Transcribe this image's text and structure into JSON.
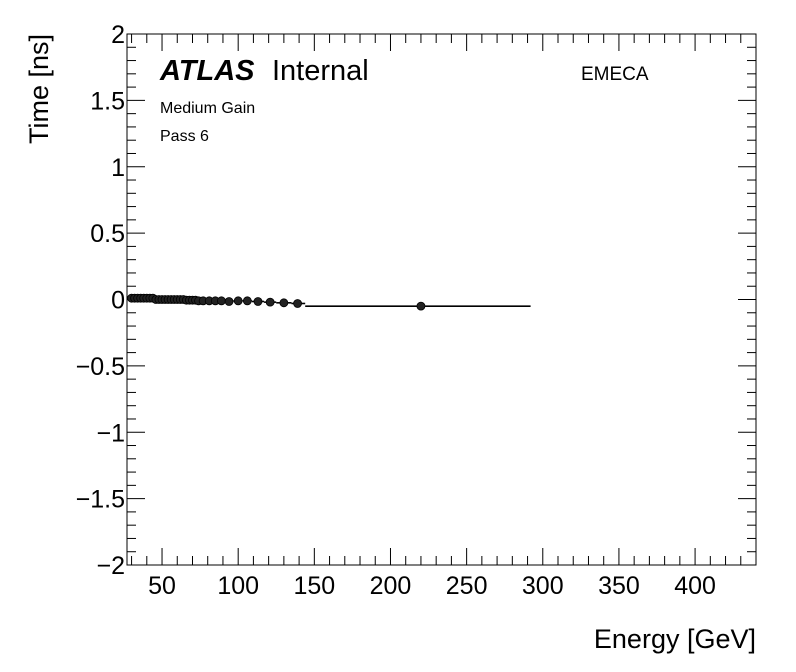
{
  "chart_data": {
    "type": "scatter",
    "xlabel": "Energy [GeV]",
    "ylabel": "Time [ns]",
    "xlim": [
      27,
      440
    ],
    "ylim": [
      -2,
      2
    ],
    "x_ticks": [
      50,
      100,
      150,
      200,
      250,
      300,
      350,
      400
    ],
    "x_tick_labels": [
      "50",
      "100",
      "150",
      "200",
      "250",
      "300",
      "350",
      "400"
    ],
    "y_ticks": [
      -2,
      -1.5,
      -1,
      -0.5,
      0,
      0.5,
      1,
      1.5,
      2
    ],
    "y_tick_labels": [
      "−2",
      "−1.5",
      "−1",
      "−0.5",
      "0",
      "0.5",
      "1",
      "1.5",
      "2"
    ],
    "atlas_label": "ATLAS",
    "atlas_sublabel": "Internal",
    "annotations": [
      "Medium Gain",
      "Pass 6"
    ],
    "region_label": "EMECA",
    "grid": false,
    "points": [
      {
        "x": 30,
        "y": 0.01,
        "xmin": 29,
        "xmax": 31
      },
      {
        "x": 32,
        "y": 0.01,
        "xmin": 31,
        "xmax": 33
      },
      {
        "x": 34,
        "y": 0.01,
        "xmin": 33,
        "xmax": 35
      },
      {
        "x": 36,
        "y": 0.01,
        "xmin": 35,
        "xmax": 37
      },
      {
        "x": 38,
        "y": 0.01,
        "xmin": 37,
        "xmax": 39
      },
      {
        "x": 40,
        "y": 0.01,
        "xmin": 39,
        "xmax": 41
      },
      {
        "x": 42,
        "y": 0.01,
        "xmin": 41,
        "xmax": 43
      },
      {
        "x": 44,
        "y": 0.01,
        "xmin": 43,
        "xmax": 45
      },
      {
        "x": 46,
        "y": 0.0,
        "xmin": 45,
        "xmax": 47
      },
      {
        "x": 48,
        "y": 0.0,
        "xmin": 47,
        "xmax": 49
      },
      {
        "x": 50,
        "y": 0.0,
        "xmin": 49,
        "xmax": 51
      },
      {
        "x": 52,
        "y": 0.0,
        "xmin": 51,
        "xmax": 53
      },
      {
        "x": 54,
        "y": 0.0,
        "xmin": 53,
        "xmax": 55
      },
      {
        "x": 56,
        "y": 0.0,
        "xmin": 55,
        "xmax": 57
      },
      {
        "x": 58,
        "y": 0.0,
        "xmin": 57,
        "xmax": 59
      },
      {
        "x": 60,
        "y": 0.0,
        "xmin": 59,
        "xmax": 61
      },
      {
        "x": 62,
        "y": 0.0,
        "xmin": 61,
        "xmax": 63
      },
      {
        "x": 64,
        "y": 0.0,
        "xmin": 63,
        "xmax": 65
      },
      {
        "x": 66,
        "y": -0.005,
        "xmin": 65,
        "xmax": 67
      },
      {
        "x": 68,
        "y": -0.005,
        "xmin": 67,
        "xmax": 69
      },
      {
        "x": 70,
        "y": -0.005,
        "xmin": 69,
        "xmax": 71
      },
      {
        "x": 72,
        "y": -0.005,
        "xmin": 71,
        "xmax": 73
      },
      {
        "x": 74,
        "y": -0.01,
        "xmin": 73,
        "xmax": 75
      },
      {
        "x": 77,
        "y": -0.01,
        "xmin": 75,
        "xmax": 79
      },
      {
        "x": 81,
        "y": -0.01,
        "xmin": 79,
        "xmax": 83
      },
      {
        "x": 85,
        "y": -0.01,
        "xmin": 83,
        "xmax": 87
      },
      {
        "x": 89,
        "y": -0.01,
        "xmin": 87,
        "xmax": 91
      },
      {
        "x": 94,
        "y": -0.015,
        "xmin": 91,
        "xmax": 97
      },
      {
        "x": 100,
        "y": -0.01,
        "xmin": 97,
        "xmax": 103
      },
      {
        "x": 106,
        "y": -0.01,
        "xmin": 103,
        "xmax": 109
      },
      {
        "x": 113,
        "y": -0.015,
        "xmin": 109,
        "xmax": 117
      },
      {
        "x": 121,
        "y": -0.02,
        "xmin": 117,
        "xmax": 125
      },
      {
        "x": 130,
        "y": -0.025,
        "xmin": 125,
        "xmax": 135
      },
      {
        "x": 139,
        "y": -0.03,
        "xmin": 135,
        "xmax": 144
      },
      {
        "x": 220,
        "y": -0.05,
        "xmin": 144,
        "xmax": 292
      }
    ]
  }
}
